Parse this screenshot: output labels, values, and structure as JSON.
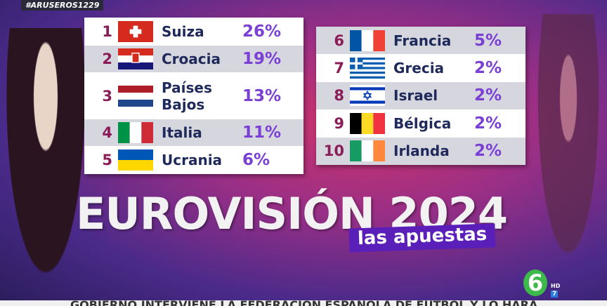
{
  "hashtag": "#ARUSEROS1229",
  "ranking": [
    {
      "rank": "1",
      "country": "Suiza",
      "share": "26%"
    },
    {
      "rank": "2",
      "country": "Croacia",
      "share": "19%"
    },
    {
      "rank": "3",
      "country": "Países Bajos",
      "share": "13%"
    },
    {
      "rank": "4",
      "country": "Italia",
      "share": "11%"
    },
    {
      "rank": "5",
      "country": "Ucrania",
      "share": "6%"
    },
    {
      "rank": "6",
      "country": "Francia",
      "share": "5%"
    },
    {
      "rank": "7",
      "country": "Grecia",
      "share": "2%"
    },
    {
      "rank": "8",
      "country": "Israel",
      "share": "2%"
    },
    {
      "rank": "9",
      "country": "Bélgica",
      "share": "2%"
    },
    {
      "rank": "10",
      "country": "Irlanda",
      "share": "2%"
    }
  ],
  "title": "EUROVISIÓN 2024",
  "subtitle": "las apuestas",
  "channel": {
    "logo": "6",
    "hd": "HD",
    "number": "7"
  },
  "ticker": "GOBIERNO INTERVIENE LA FEDERACIÓN ESPAÑOLA DE FÚTBOL Y LO HARÁ"
}
